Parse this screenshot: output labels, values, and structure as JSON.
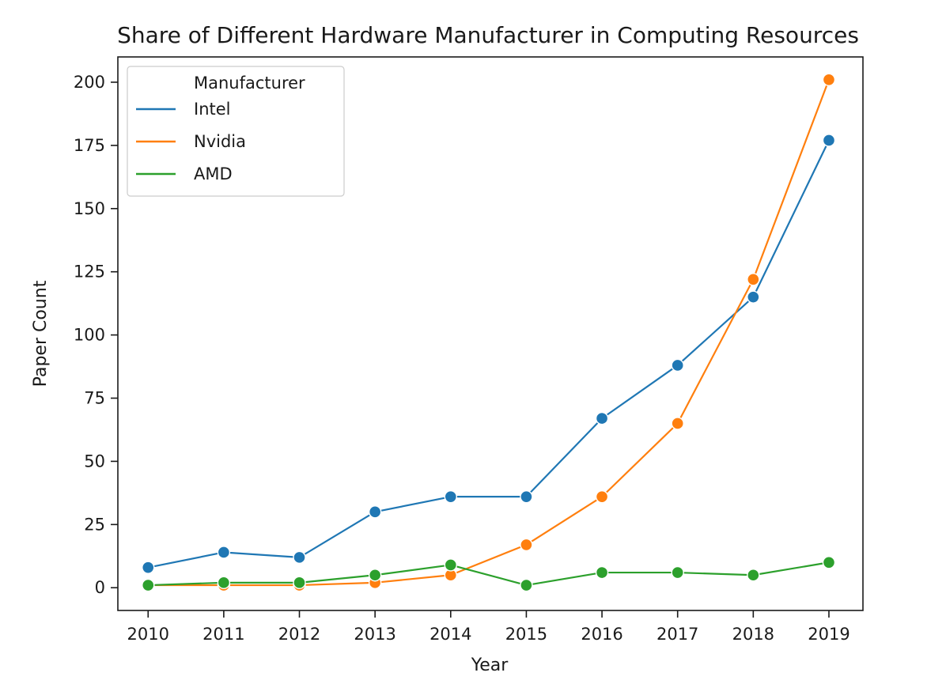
{
  "chart_data": {
    "type": "line",
    "title": "Share of Different Hardware Manufacturer in Computing Resources",
    "xlabel": "Year",
    "ylabel": "Paper Count",
    "x": [
      2010,
      2011,
      2012,
      2013,
      2014,
      2015,
      2016,
      2017,
      2018,
      2019
    ],
    "x_tick_labels": [
      "2010",
      "2011",
      "2012",
      "2013",
      "2014",
      "2015",
      "2016",
      "2017",
      "2018",
      "2019"
    ],
    "y_ticks": [
      0,
      25,
      50,
      75,
      100,
      125,
      150,
      175,
      200
    ],
    "y_tick_labels": [
      "0",
      "25",
      "50",
      "75",
      "100",
      "125",
      "150",
      "175",
      "200"
    ],
    "ylim": [
      -9,
      210
    ],
    "xlim": [
      2009.6,
      2019.45
    ],
    "grid": false,
    "legend": {
      "title": "Manufacturer",
      "placement": "upper-left"
    },
    "markers": "circle",
    "series": [
      {
        "name": "Intel",
        "color": "#1f77b4",
        "values": [
          8,
          14,
          12,
          30,
          36,
          36,
          67,
          88,
          115,
          177
        ]
      },
      {
        "name": "Nvidia",
        "color": "#ff7f0e",
        "values": [
          1,
          1,
          1,
          2,
          5,
          17,
          36,
          65,
          122,
          201
        ]
      },
      {
        "name": "AMD",
        "color": "#2ca02c",
        "values": [
          1,
          2,
          2,
          5,
          9,
          1,
          6,
          6,
          5,
          10
        ]
      }
    ]
  }
}
